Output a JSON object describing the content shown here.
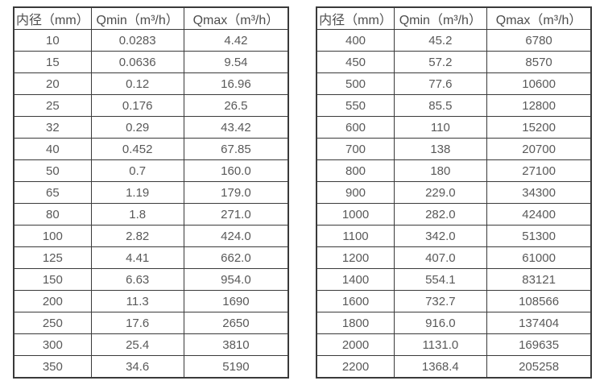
{
  "colors": {
    "background": "#ffffff",
    "table_border": "#3a3a3a",
    "cell_text": "#595959",
    "header_text": "#4d4d4d"
  },
  "tables": [
    {
      "name": "flow-rates-small-diameters",
      "headers": [
        "内径（mm）",
        "Qmin（m³/h）",
        "Qmax（m³/h）"
      ],
      "rows": [
        [
          "10",
          "0.0283",
          "4.42"
        ],
        [
          "15",
          "0.0636",
          "9.54"
        ],
        [
          "20",
          "0.12",
          "16.96"
        ],
        [
          "25",
          "0.176",
          "26.5"
        ],
        [
          "32",
          "0.29",
          "43.42"
        ],
        [
          "40",
          "0.452",
          "67.85"
        ],
        [
          "50",
          "0.7",
          "160.0"
        ],
        [
          "65",
          "1.19",
          "179.0"
        ],
        [
          "80",
          "1.8",
          "271.0"
        ],
        [
          "100",
          "2.82",
          "424.0"
        ],
        [
          "125",
          "4.41",
          "662.0"
        ],
        [
          "150",
          "6.63",
          "954.0"
        ],
        [
          "200",
          "11.3",
          "1690"
        ],
        [
          "250",
          "17.6",
          "2650"
        ],
        [
          "300",
          "25.4",
          "3810"
        ],
        [
          "350",
          "34.6",
          "5190"
        ]
      ]
    },
    {
      "name": "flow-rates-large-diameters",
      "headers": [
        "内径（mm）",
        "Qmin（m³/h）",
        "Qmax（m³/h）"
      ],
      "rows": [
        [
          "400",
          "45.2",
          "6780"
        ],
        [
          "450",
          "57.2",
          "8570"
        ],
        [
          "500",
          "77.6",
          "10600"
        ],
        [
          "550",
          "85.5",
          "12800"
        ],
        [
          "600",
          "110",
          "15200"
        ],
        [
          "700",
          "138",
          "20700"
        ],
        [
          "800",
          "180",
          "27100"
        ],
        [
          "900",
          "229.0",
          "34300"
        ],
        [
          "1000",
          "282.0",
          "42400"
        ],
        [
          "1100",
          "342.0",
          "51300"
        ],
        [
          "1200",
          "407.0",
          "61000"
        ],
        [
          "1400",
          "554.1",
          "83121"
        ],
        [
          "1600",
          "732.7",
          "108566"
        ],
        [
          "1800",
          "916.0",
          "137404"
        ],
        [
          "2000",
          "1131.0",
          "169635"
        ],
        [
          "2200",
          "1368.4",
          "205258"
        ]
      ]
    }
  ]
}
